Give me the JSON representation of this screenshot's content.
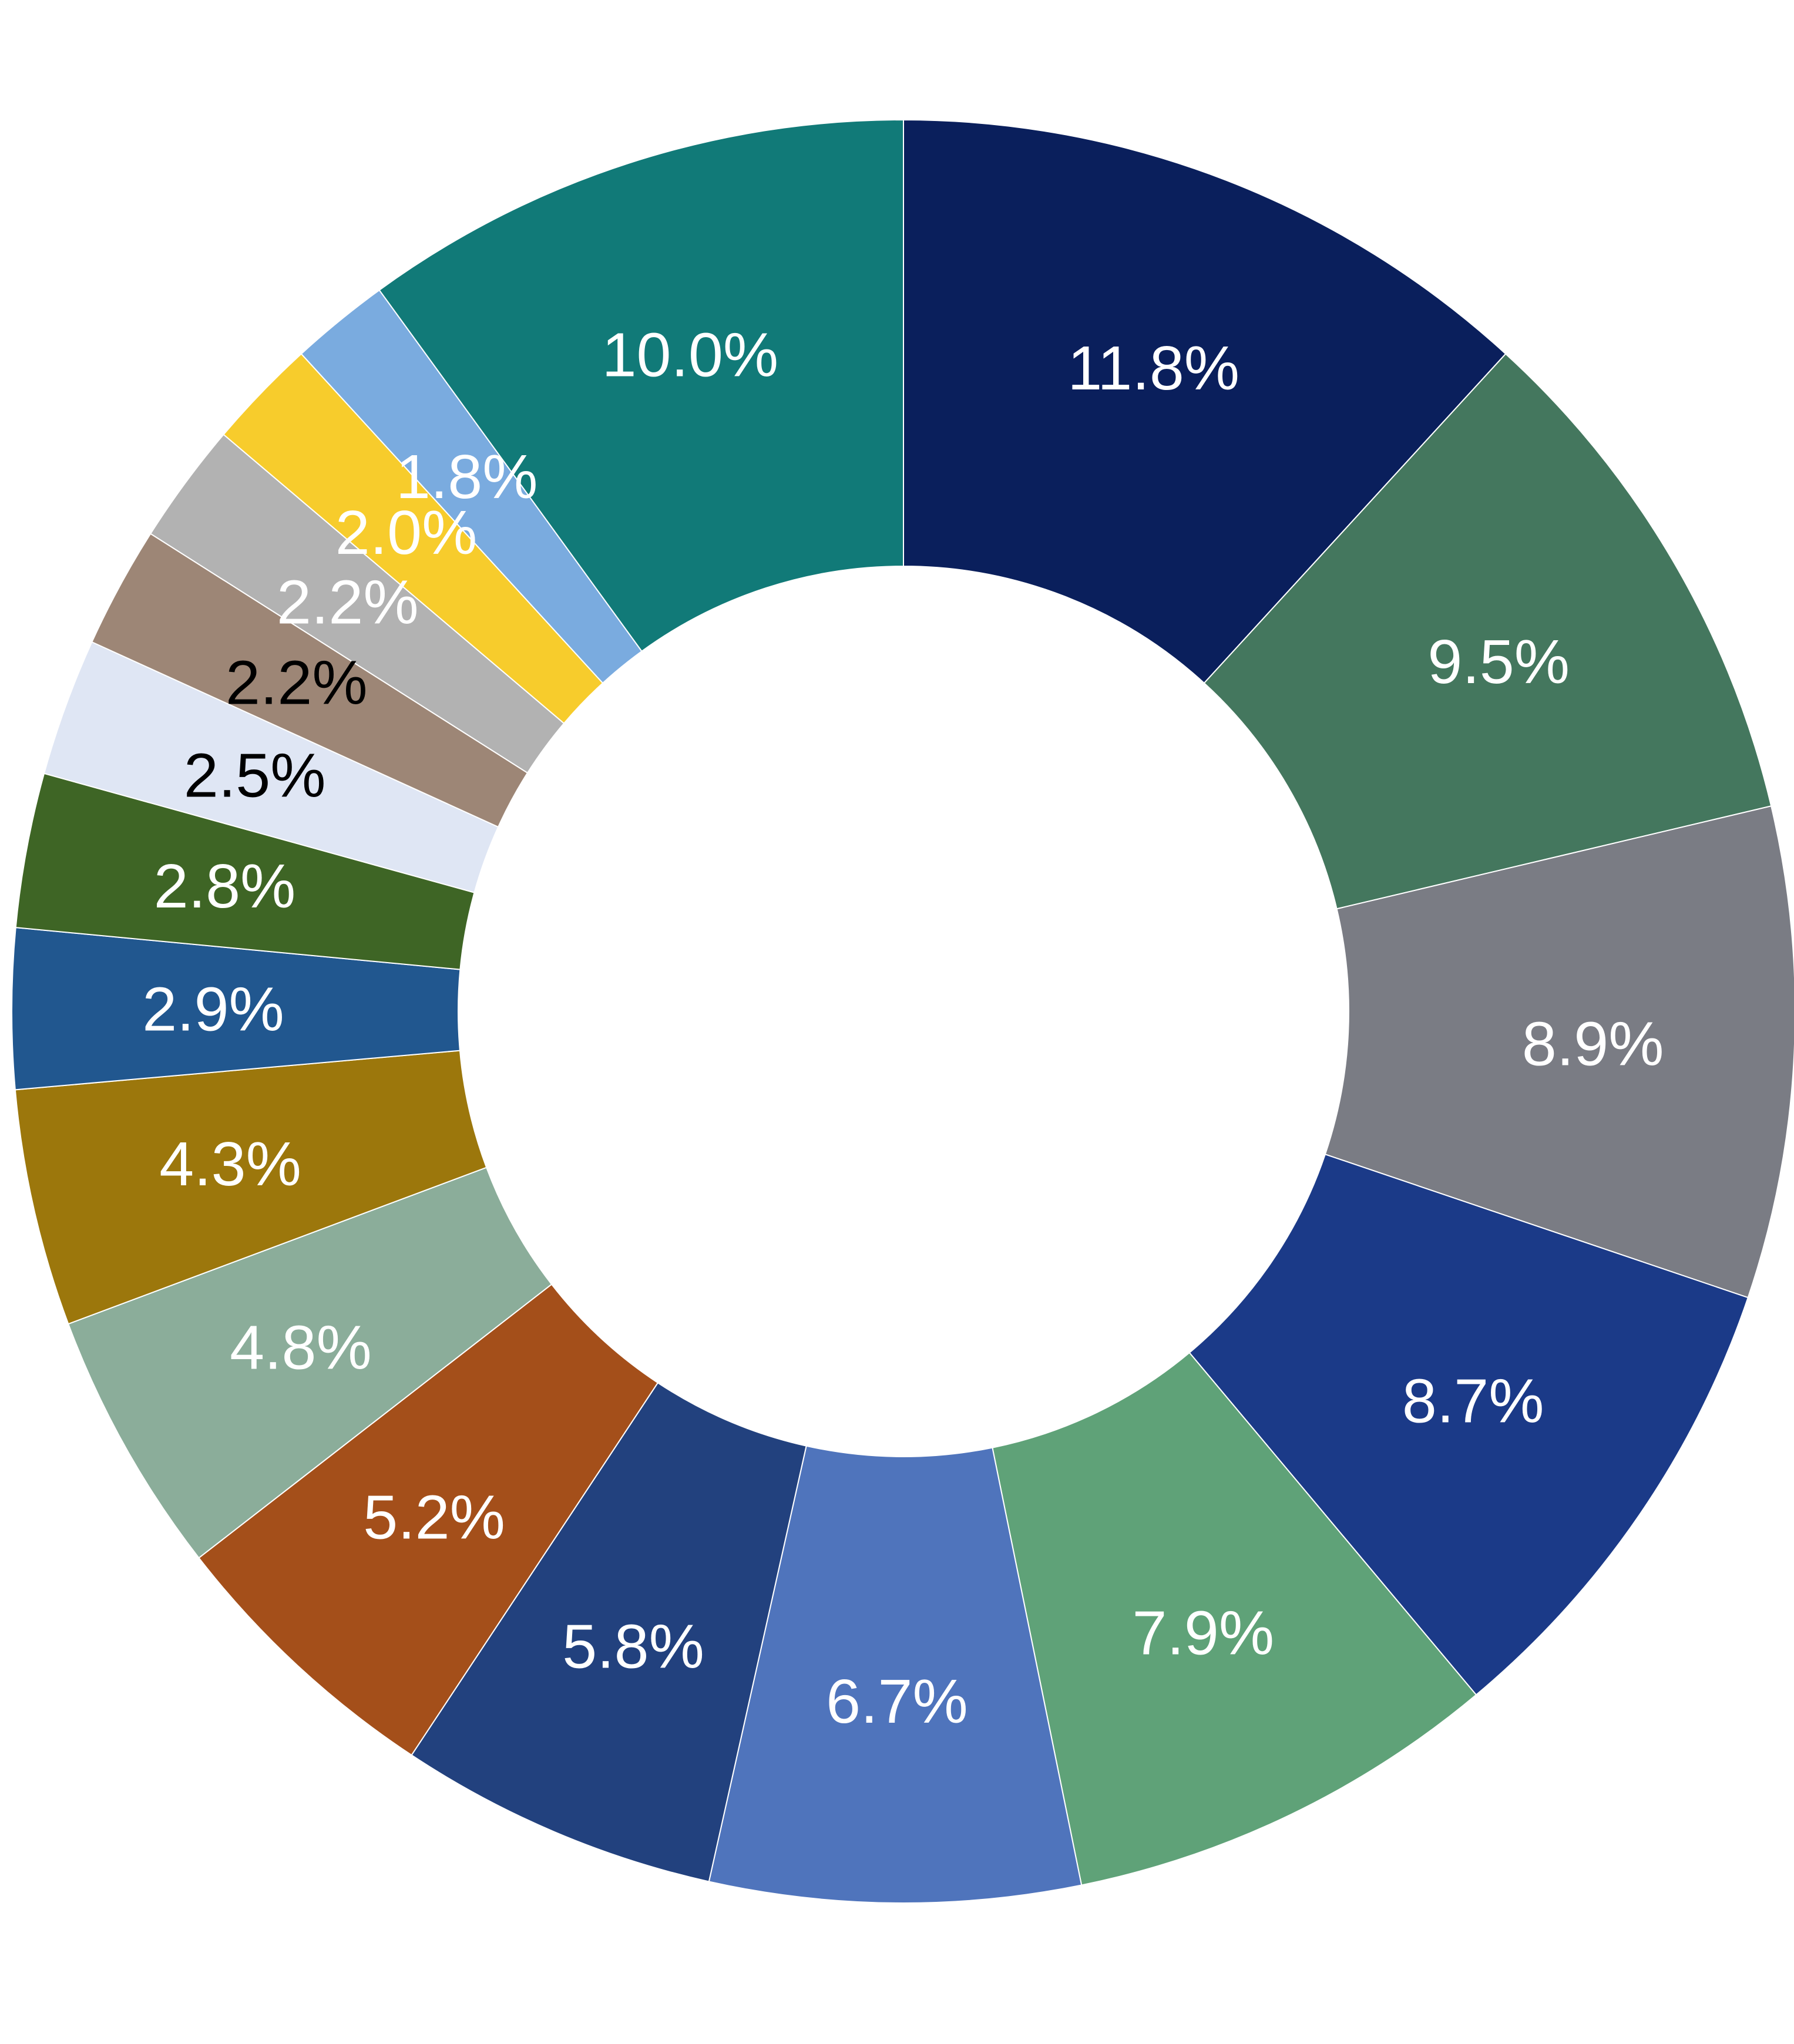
{
  "chart_data": {
    "type": "pie",
    "variant": "donut",
    "legend": "none",
    "start_angle_deg": 0,
    "direction": "clockwise",
    "slices": [
      {
        "value": 11.8,
        "label": "11.8%",
        "color": "#0A1F5C",
        "label_color": "#FFFFFF"
      },
      {
        "value": 9.5,
        "label": "9.5%",
        "color": "#44775E",
        "label_color": "#FFFFFF"
      },
      {
        "value": 8.9,
        "label": "8.9%",
        "color": "#7A7C84",
        "label_color": "#FFFFFF"
      },
      {
        "value": 8.7,
        "label": "8.7%",
        "color": "#1B3A88",
        "label_color": "#FFFFFF"
      },
      {
        "value": 7.9,
        "label": "7.9%",
        "color": "#5FA278",
        "label_color": "#FFFFFF"
      },
      {
        "value": 6.7,
        "label": "6.7%",
        "color": "#4F74BC",
        "label_color": "#FFFFFF"
      },
      {
        "value": 5.8,
        "label": "5.8%",
        "color": "#22417E",
        "label_color": "#FFFFFF"
      },
      {
        "value": 5.2,
        "label": "5.2%",
        "color": "#A44F1A",
        "label_color": "#FFFFFF"
      },
      {
        "value": 4.8,
        "label": "4.8%",
        "color": "#8BAD9A",
        "label_color": "#FFFFFF"
      },
      {
        "value": 4.3,
        "label": "4.3%",
        "color": "#9C770C",
        "label_color": "#FFFFFF"
      },
      {
        "value": 2.9,
        "label": "2.9%",
        "color": "#21578F",
        "label_color": "#FFFFFF"
      },
      {
        "value": 2.8,
        "label": "2.8%",
        "color": "#3E6525",
        "label_color": "#FFFFFF"
      },
      {
        "value": 2.5,
        "label": "2.5%",
        "color": "#DFE6F4",
        "label_color": "#000000"
      },
      {
        "value": 2.2,
        "label": "2.2%",
        "color": "#9D8676",
        "label_color": "#000000"
      },
      {
        "value": 2.2,
        "label": "2.2%",
        "color": "#B2B2B2",
        "label_color": "#FFFFFF"
      },
      {
        "value": 2.0,
        "label": "2.0%",
        "color": "#F7CC2C",
        "label_color": "#FFFFFF"
      },
      {
        "value": 1.8,
        "label": "1.8%",
        "color": "#7AABDF",
        "label_color": "#FFFFFF"
      },
      {
        "value": 10.0,
        "label": "10.0%",
        "color": "#117A78",
        "label_color": "#FFFFFF"
      }
    ]
  }
}
